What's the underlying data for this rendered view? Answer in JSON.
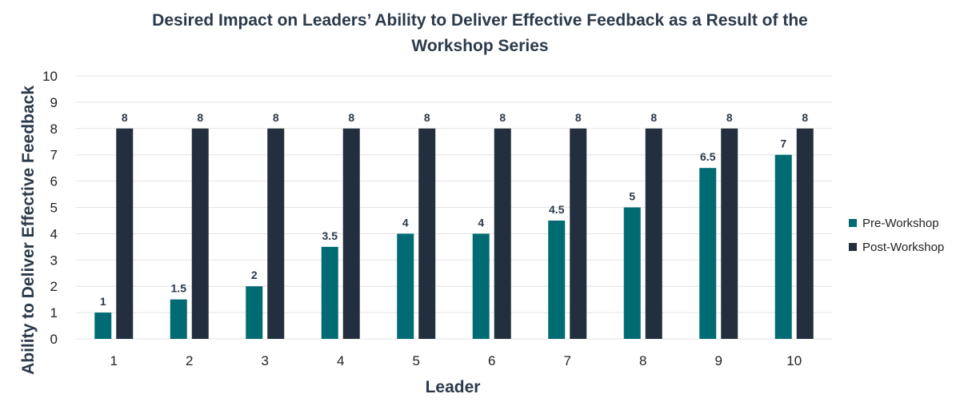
{
  "chart_data": {
    "type": "bar",
    "title_lines": [
      "Desired Impact on Leaders’ Ability to Deliver Effective Feedback as a Result of the",
      "Workshop Series"
    ],
    "xlabel": "Leader",
    "ylabel": "Ability to Deliver Effective Feedback",
    "categories": [
      "1",
      "2",
      "3",
      "4",
      "5",
      "6",
      "7",
      "8",
      "9",
      "10"
    ],
    "ylim": [
      0,
      10
    ],
    "yticks": [
      0,
      1,
      2,
      3,
      4,
      5,
      6,
      7,
      8,
      9,
      10
    ],
    "grid": true,
    "legend_position": "right",
    "series": [
      {
        "name": "Pre-Workshop",
        "color": "#006b73",
        "values": [
          1,
          1.5,
          2,
          3.5,
          4,
          4,
          4.5,
          5,
          6.5,
          7
        ]
      },
      {
        "name": "Post-Workshop",
        "color": "#232f3e",
        "values": [
          8,
          8,
          8,
          8,
          8,
          8,
          8,
          8,
          8,
          8
        ]
      }
    ]
  }
}
